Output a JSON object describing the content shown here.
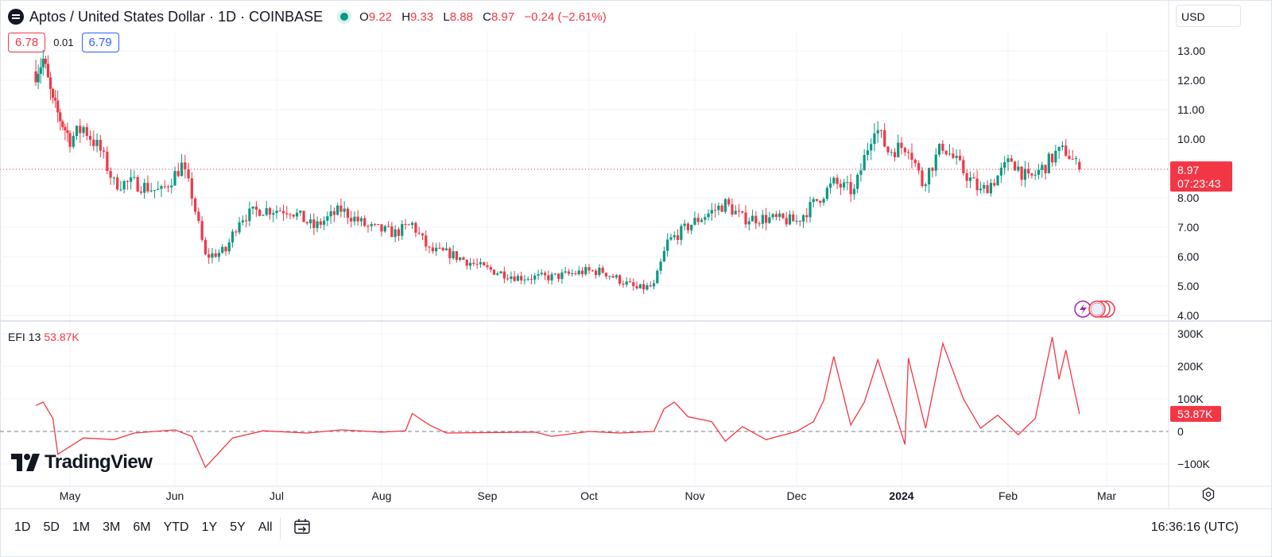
{
  "header": {
    "title": "Aptos / United States Dollar · 1D · COINBASE",
    "o_label": "O",
    "o": "9.22",
    "h_label": "H",
    "h": "9.33",
    "l_label": "L",
    "l": "8.88",
    "c_label": "C",
    "c": "8.97",
    "change": "−0.24 (−2.61%)"
  },
  "bidask": {
    "bid": "6.78",
    "spread": "0.01",
    "ask": "6.79"
  },
  "currency": "USD",
  "price_tag": {
    "price": "8.97",
    "countdown": "07:23:43"
  },
  "efi": {
    "name": "EFI",
    "period": "13",
    "value": "53.87K",
    "tag": "53.87K"
  },
  "brand": "TradingView",
  "periods": [
    "1D",
    "5D",
    "1M",
    "3M",
    "6M",
    "YTD",
    "1Y",
    "5Y",
    "All"
  ],
  "clock": "16:36:16 (UTC)",
  "colors": {
    "up": "#089981",
    "down": "#f23645",
    "efi": "#f23645",
    "grid": "#f0f3fa"
  },
  "icons": [
    "logo-icon",
    "live-status-icon",
    "calendar-range-icon",
    "settings-icon",
    "tradingview-logo-icon"
  ],
  "chart_data": [
    {
      "type": "candlestick",
      "title": "Aptos / United States Dollar · 1D · COINBASE",
      "y_ticks": [
        "13.00",
        "12.00",
        "11.00",
        "10.00",
        "9.00",
        "8.00",
        "7.00",
        "6.00",
        "5.00",
        "4.00"
      ],
      "x_ticks": [
        "May",
        "Jun",
        "Jul",
        "Aug",
        "Sep",
        "Oct",
        "Nov",
        "Dec",
        "2024",
        "Feb",
        "Mar"
      ],
      "ylim": [
        4.0,
        13.0
      ],
      "last_price": 8.97,
      "grid": true,
      "series": [
        {
          "name": "Aptos / United States Dollar",
          "values_close_checkpoints": [
            {
              "x": "2023-04-17",
              "close": 12.3
            },
            {
              "x": "2023-04-20",
              "close": 12.7
            },
            {
              "x": "2023-04-24",
              "close": 11.2
            },
            {
              "x": "2023-05-01",
              "close": 10.0
            },
            {
              "x": "2023-05-05",
              "close": 10.4
            },
            {
              "x": "2023-05-10",
              "close": 9.6
            },
            {
              "x": "2023-05-14",
              "close": 8.5
            },
            {
              "x": "2023-05-20",
              "close": 8.5
            },
            {
              "x": "2023-05-28",
              "close": 8.2
            },
            {
              "x": "2023-06-03",
              "close": 9.1
            },
            {
              "x": "2023-06-06",
              "close": 8.1
            },
            {
              "x": "2023-06-10",
              "close": 6.0
            },
            {
              "x": "2023-06-16",
              "close": 6.2
            },
            {
              "x": "2023-06-20",
              "close": 7.3
            },
            {
              "x": "2023-06-26",
              "close": 7.6
            },
            {
              "x": "2023-07-05",
              "close": 7.6
            },
            {
              "x": "2023-07-12",
              "close": 7.0
            },
            {
              "x": "2023-07-20",
              "close": 7.6
            },
            {
              "x": "2023-07-28",
              "close": 7.0
            },
            {
              "x": "2023-08-05",
              "close": 6.8
            },
            {
              "x": "2023-08-10",
              "close": 7.1
            },
            {
              "x": "2023-08-15",
              "close": 6.2
            },
            {
              "x": "2023-08-21",
              "close": 6.1
            },
            {
              "x": "2023-08-31",
              "close": 5.6
            },
            {
              "x": "2023-09-10",
              "close": 5.3
            },
            {
              "x": "2023-09-20",
              "close": 5.3
            },
            {
              "x": "2023-09-30",
              "close": 5.5
            },
            {
              "x": "2023-10-05",
              "close": 5.5
            },
            {
              "x": "2023-10-10",
              "close": 5.2
            },
            {
              "x": "2023-10-15",
              "close": 4.9
            },
            {
              "x": "2023-10-20",
              "close": 5.0
            },
            {
              "x": "2023-10-24",
              "close": 6.5
            },
            {
              "x": "2023-11-01",
              "close": 7.2
            },
            {
              "x": "2023-11-10",
              "close": 7.8
            },
            {
              "x": "2023-11-15",
              "close": 7.3
            },
            {
              "x": "2023-11-22",
              "close": 7.3
            },
            {
              "x": "2023-12-01",
              "close": 7.2
            },
            {
              "x": "2023-12-06",
              "close": 7.8
            },
            {
              "x": "2023-12-12",
              "close": 8.5
            },
            {
              "x": "2023-12-18",
              "close": 8.2
            },
            {
              "x": "2023-12-24",
              "close": 10.5
            },
            {
              "x": "2023-12-28",
              "close": 9.6
            },
            {
              "x": "2024-01-03",
              "close": 9.8
            },
            {
              "x": "2024-01-07",
              "close": 8.5
            },
            {
              "x": "2024-01-13",
              "close": 9.8
            },
            {
              "x": "2024-01-19",
              "close": 8.9
            },
            {
              "x": "2024-01-24",
              "close": 8.2
            },
            {
              "x": "2024-01-28",
              "close": 8.6
            },
            {
              "x": "2024-02-02",
              "close": 9.3
            },
            {
              "x": "2024-02-07",
              "close": 8.6
            },
            {
              "x": "2024-02-12",
              "close": 9.1
            },
            {
              "x": "2024-02-15",
              "close": 9.5
            },
            {
              "x": "2024-02-18",
              "close": 9.6
            },
            {
              "x": "2024-02-22",
              "close": 8.97
            }
          ]
        }
      ]
    },
    {
      "type": "line",
      "title": "EFI 13",
      "y_ticks": [
        "300K",
        "200K",
        "100K",
        "0",
        "−100K"
      ],
      "ylim": [
        -100000,
        300000
      ],
      "last_value": 53870,
      "series": [
        {
          "name": "EFI",
          "points": [
            {
              "x": "2023-04-17",
              "y": 80000
            },
            {
              "x": "2023-04-20",
              "y": 90000
            },
            {
              "x": "2023-04-24",
              "y": 40000
            },
            {
              "x": "2023-04-26",
              "y": -70000
            },
            {
              "x": "2023-05-05",
              "y": -20000
            },
            {
              "x": "2023-05-14",
              "y": -25000
            },
            {
              "x": "2023-05-20",
              "y": -5000
            },
            {
              "x": "2023-06-01",
              "y": 5000
            },
            {
              "x": "2023-06-06",
              "y": -15000
            },
            {
              "x": "2023-06-10",
              "y": -110000
            },
            {
              "x": "2023-06-18",
              "y": -20000
            },
            {
              "x": "2023-06-27",
              "y": 2000
            },
            {
              "x": "2023-07-10",
              "y": -5000
            },
            {
              "x": "2023-07-20",
              "y": 5000
            },
            {
              "x": "2023-08-01",
              "y": -2000
            },
            {
              "x": "2023-08-08",
              "y": 2000
            },
            {
              "x": "2023-08-10",
              "y": 55000
            },
            {
              "x": "2023-08-15",
              "y": 20000
            },
            {
              "x": "2023-08-20",
              "y": -5000
            },
            {
              "x": "2023-09-15",
              "y": -2000
            },
            {
              "x": "2023-09-20",
              "y": -15000
            },
            {
              "x": "2023-10-01",
              "y": 0
            },
            {
              "x": "2023-10-10",
              "y": -5000
            },
            {
              "x": "2023-10-20",
              "y": 0
            },
            {
              "x": "2023-10-23",
              "y": 70000
            },
            {
              "x": "2023-10-26",
              "y": 90000
            },
            {
              "x": "2023-10-30",
              "y": 45000
            },
            {
              "x": "2023-11-06",
              "y": 30000
            },
            {
              "x": "2023-11-10",
              "y": -30000
            },
            {
              "x": "2023-11-15",
              "y": 15000
            },
            {
              "x": "2023-11-22",
              "y": -25000
            },
            {
              "x": "2023-12-01",
              "y": 0
            },
            {
              "x": "2023-12-06",
              "y": 30000
            },
            {
              "x": "2023-12-09",
              "y": 95000
            },
            {
              "x": "2023-12-12",
              "y": 230000
            },
            {
              "x": "2023-12-17",
              "y": 20000
            },
            {
              "x": "2023-12-21",
              "y": 90000
            },
            {
              "x": "2023-12-25",
              "y": 220000
            },
            {
              "x": "2023-12-30",
              "y": 60000
            },
            {
              "x": "2024-01-02",
              "y": -40000
            },
            {
              "x": "2024-01-03",
              "y": 225000
            },
            {
              "x": "2024-01-08",
              "y": 10000
            },
            {
              "x": "2024-01-13",
              "y": 270000
            },
            {
              "x": "2024-01-19",
              "y": 100000
            },
            {
              "x": "2024-01-24",
              "y": 10000
            },
            {
              "x": "2024-01-29",
              "y": 50000
            },
            {
              "x": "2024-02-04",
              "y": -10000
            },
            {
              "x": "2024-02-09",
              "y": 40000
            },
            {
              "x": "2024-02-14",
              "y": 290000
            },
            {
              "x": "2024-02-16",
              "y": 160000
            },
            {
              "x": "2024-02-18",
              "y": 250000
            },
            {
              "x": "2024-02-22",
              "y": 53870
            }
          ]
        }
      ]
    }
  ]
}
